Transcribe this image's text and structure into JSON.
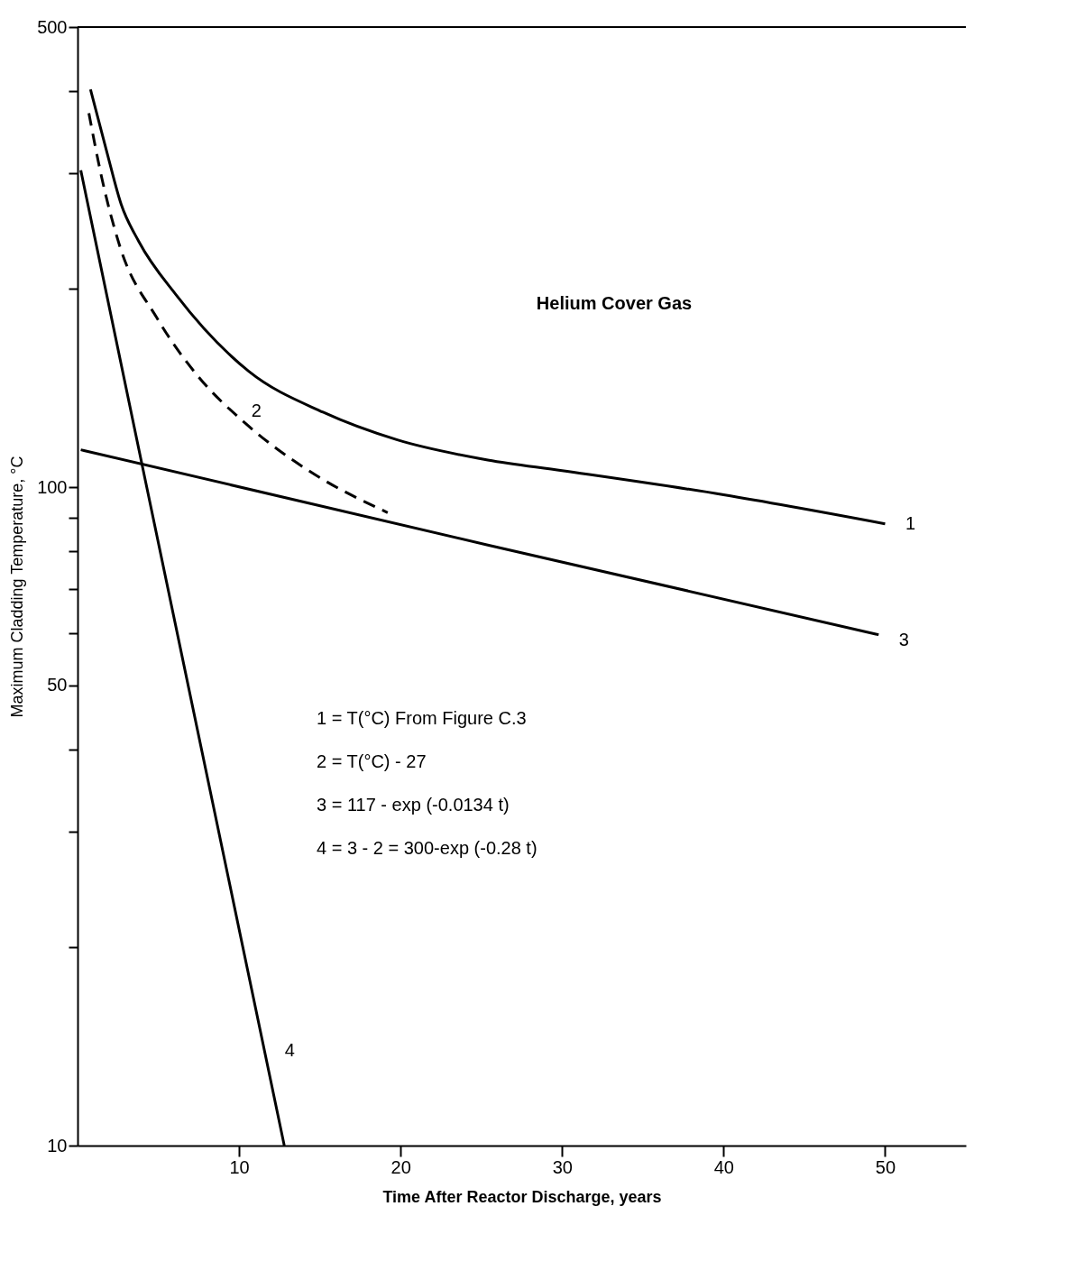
{
  "chart_data": {
    "type": "line",
    "xlabel": "Time After Reactor Discharge, years",
    "ylabel": "Maximum Cladding Temperature, °C",
    "log": "y",
    "xlim": [
      0,
      55
    ],
    "ylim": [
      10,
      500
    ],
    "xticks": [
      10,
      20,
      30,
      40,
      50
    ],
    "yticks": [
      10,
      {
        "value": 20,
        "label": null
      },
      {
        "value": 30,
        "label": null
      },
      {
        "value": 40,
        "label": null
      },
      50,
      {
        "value": 60,
        "label": null
      },
      {
        "value": 70,
        "label": null
      },
      {
        "value": 80,
        "label": null
      },
      {
        "value": 90,
        "label": null
      },
      100,
      {
        "value": 200,
        "label": null
      },
      {
        "value": 300,
        "label": null
      },
      {
        "value": 400,
        "label": null
      },
      500
    ],
    "grid": false,
    "legend": false,
    "marker": "none",
    "series": [
      {
        "name": "1",
        "color": "#000000",
        "line_style": "solid",
        "x": [
          0.8,
          1.8,
          2.7,
          3.8,
          6.1,
          10.6,
          15.2,
          19.8,
          25.4,
          30,
          40,
          50
        ],
        "values": [
          402,
          324,
          269,
          236,
          196,
          150,
          130,
          118,
          110,
          106,
          97.4,
          88
        ]
      },
      {
        "name": "2",
        "color": "#000000",
        "line_style": "dashed",
        "x": [
          0.7,
          1.5,
          2.6,
          4.9,
          7.4,
          10.4,
          14.3,
          19.2
        ],
        "values": [
          370,
          295,
          233,
          181,
          148,
          125,
          106,
          91.5
        ]
      },
      {
        "name": "3",
        "color": "#000000",
        "line_style": "solid",
        "x": [
          0.2,
          25.4,
          49.6
        ],
        "values": [
          114,
          81.7,
          59.7
        ]
      },
      {
        "name": "4",
        "color": "#000000",
        "line_style": "solid",
        "x": [
          0.2,
          4.0,
          12.8
        ],
        "values": [
          303,
          108,
          10
        ]
      }
    ],
    "annotations": [
      "Helium Cover Gas",
      "1 = T(°C) From Figure C.3",
      "2 = T(°C) - 27",
      "3 = 117 - exp (-0.0134 t)",
      "4 = 3 - 2 = 300-exp (-0.28 t)"
    ]
  }
}
